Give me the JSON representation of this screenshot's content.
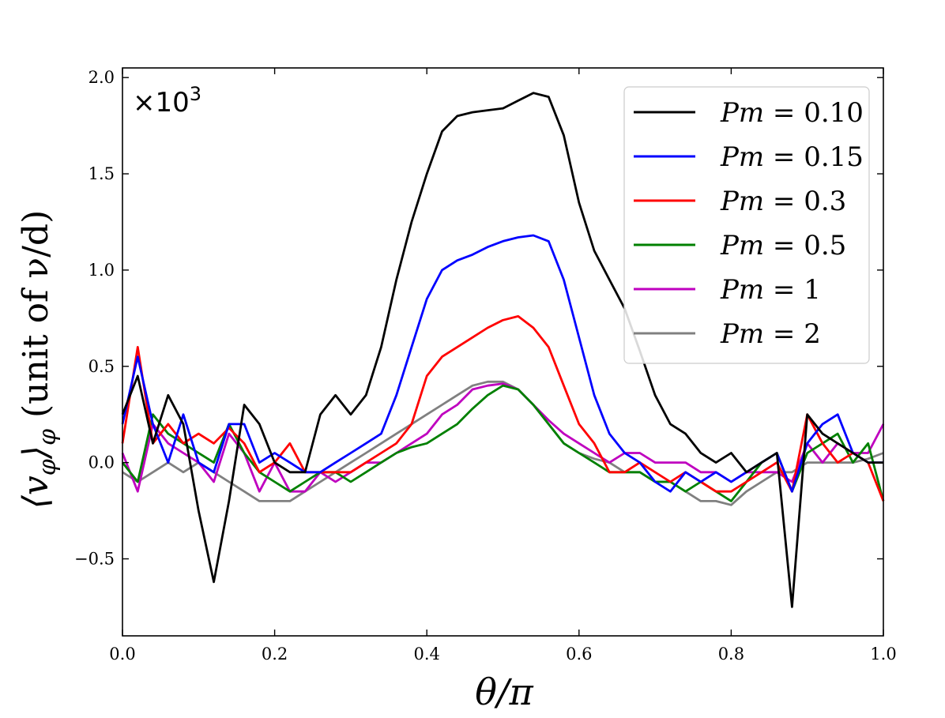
{
  "chart_data": {
    "type": "line",
    "xlabel": "θ/π",
    "ylabel": "⟨v",
    "ylabel_sub": "φ",
    "ylabel_rest": "⟩",
    "ylabel_sub2": "φ",
    "ylabel_unit": " (unit of ν/d)",
    "xlim": [
      0.0,
      1.0
    ],
    "ylim": [
      -0.9,
      2.05
    ],
    "xticks": [
      "0.0",
      "0.2",
      "0.4",
      "0.6",
      "0.8",
      "1.0"
    ],
    "xtick_values": [
      0.0,
      0.2,
      0.4,
      0.6,
      0.8,
      1.0
    ],
    "yticks": [
      "−0.5",
      "0.0",
      "0.5",
      "1.0",
      "1.5",
      "2.0"
    ],
    "ytick_values": [
      -0.5,
      0.0,
      0.5,
      1.0,
      1.5,
      2.0
    ],
    "multiplier_base": "×10",
    "multiplier_exp": "3",
    "legend_position": "top-right",
    "x": [
      0.0,
      0.02,
      0.04,
      0.06,
      0.08,
      0.1,
      0.12,
      0.14,
      0.16,
      0.18,
      0.2,
      0.22,
      0.24,
      0.26,
      0.28,
      0.3,
      0.32,
      0.34,
      0.36,
      0.38,
      0.4,
      0.42,
      0.44,
      0.46,
      0.48,
      0.5,
      0.52,
      0.54,
      0.56,
      0.58,
      0.6,
      0.62,
      0.64,
      0.66,
      0.68,
      0.7,
      0.72,
      0.74,
      0.76,
      0.78,
      0.8,
      0.82,
      0.84,
      0.86,
      0.88,
      0.9,
      0.92,
      0.94,
      0.96,
      0.98,
      1.0
    ],
    "series": [
      {
        "name": "Pm = 0.10",
        "label_a": "Pm",
        "label_b": " = 0.10",
        "color": "#000000",
        "values": [
          0.25,
          0.45,
          0.1,
          0.35,
          0.2,
          -0.25,
          -0.62,
          -0.2,
          0.3,
          0.2,
          0.0,
          -0.05,
          -0.05,
          0.25,
          0.35,
          0.25,
          0.35,
          0.6,
          0.95,
          1.25,
          1.5,
          1.72,
          1.8,
          1.82,
          1.83,
          1.84,
          1.88,
          1.92,
          1.9,
          1.7,
          1.35,
          1.1,
          0.95,
          0.8,
          0.58,
          0.35,
          0.2,
          0.15,
          0.05,
          0.0,
          0.05,
          -0.05,
          0.0,
          0.05,
          -0.75,
          0.25,
          0.15,
          0.1,
          0.05,
          0.0,
          0.0
        ]
      },
      {
        "name": "Pm = 0.15",
        "label_a": "Pm",
        "label_b": " = 0.15",
        "color": "#0000ff",
        "values": [
          0.2,
          0.55,
          0.2,
          0.0,
          0.25,
          0.0,
          -0.05,
          0.2,
          0.2,
          0.0,
          0.05,
          0.0,
          -0.05,
          -0.05,
          0.0,
          0.05,
          0.1,
          0.15,
          0.35,
          0.6,
          0.85,
          1.0,
          1.05,
          1.08,
          1.12,
          1.15,
          1.17,
          1.18,
          1.15,
          0.95,
          0.65,
          0.35,
          0.15,
          0.05,
          0.0,
          -0.1,
          -0.15,
          -0.05,
          -0.1,
          -0.05,
          -0.1,
          -0.05,
          0.0,
          0.05,
          -0.15,
          0.1,
          0.2,
          0.25,
          0.05,
          0.0,
          0.0
        ]
      },
      {
        "name": "Pm = 0.3",
        "label_a": "Pm",
        "label_b": " = 0.3",
        "color": "#ff0000",
        "values": [
          0.1,
          0.6,
          0.1,
          0.2,
          0.1,
          0.15,
          0.1,
          0.18,
          0.1,
          -0.05,
          0.0,
          0.1,
          -0.05,
          -0.05,
          -0.05,
          -0.05,
          0.0,
          0.05,
          0.1,
          0.2,
          0.45,
          0.55,
          0.6,
          0.65,
          0.7,
          0.74,
          0.76,
          0.7,
          0.6,
          0.4,
          0.2,
          0.1,
          -0.05,
          -0.05,
          0.0,
          -0.05,
          -0.1,
          -0.05,
          -0.1,
          -0.15,
          -0.15,
          -0.1,
          -0.05,
          0.0,
          -0.15,
          0.25,
          0.1,
          0.0,
          0.05,
          0.0,
          -0.2
        ]
      },
      {
        "name": "Pm = 0.5",
        "label_a": "Pm",
        "label_b": " = 0.5",
        "color": "#008000",
        "values": [
          0.0,
          -0.1,
          0.25,
          0.15,
          0.1,
          0.05,
          0.0,
          0.2,
          0.05,
          -0.05,
          -0.1,
          -0.15,
          -0.1,
          -0.05,
          -0.05,
          -0.1,
          -0.05,
          0.0,
          0.05,
          0.08,
          0.1,
          0.15,
          0.2,
          0.28,
          0.35,
          0.4,
          0.38,
          0.3,
          0.2,
          0.1,
          0.05,
          0.0,
          -0.05,
          -0.05,
          -0.05,
          -0.1,
          -0.1,
          -0.15,
          -0.1,
          -0.15,
          -0.2,
          -0.1,
          0.0,
          0.05,
          -0.15,
          0.05,
          0.1,
          0.15,
          0.0,
          0.1,
          -0.2
        ]
      },
      {
        "name": "Pm = 1",
        "label_a": "Pm",
        "label_b": " = 1",
        "color": "#bf00bf",
        "values": [
          0.05,
          -0.15,
          0.2,
          0.1,
          0.05,
          0.0,
          -0.1,
          0.15,
          0.05,
          -0.15,
          0.0,
          -0.15,
          -0.15,
          -0.05,
          -0.1,
          -0.05,
          0.0,
          0.0,
          0.05,
          0.1,
          0.15,
          0.25,
          0.3,
          0.38,
          0.4,
          0.41,
          0.38,
          0.3,
          0.22,
          0.15,
          0.1,
          0.05,
          0.0,
          0.05,
          0.05,
          0.0,
          0.0,
          0.0,
          -0.05,
          -0.05,
          -0.1,
          -0.05,
          -0.05,
          -0.05,
          -0.1,
          0.1,
          0.0,
          0.1,
          0.05,
          0.05,
          0.2
        ]
      },
      {
        "name": "Pm = 2",
        "label_a": "Pm",
        "label_b": " = 2",
        "color": "#808080",
        "values": [
          -0.05,
          -0.1,
          -0.05,
          0.0,
          -0.05,
          0.0,
          -0.05,
          -0.1,
          -0.15,
          -0.2,
          -0.2,
          -0.2,
          -0.15,
          -0.1,
          -0.05,
          0.0,
          0.05,
          0.1,
          0.15,
          0.2,
          0.25,
          0.3,
          0.35,
          0.4,
          0.42,
          0.42,
          0.38,
          0.3,
          0.2,
          0.1,
          0.05,
          0.02,
          0.0,
          -0.05,
          -0.05,
          -0.1,
          -0.1,
          -0.15,
          -0.2,
          -0.2,
          -0.22,
          -0.15,
          -0.1,
          -0.05,
          -0.05,
          0.0,
          0.0,
          0.0,
          0.0,
          0.02,
          0.05
        ]
      }
    ]
  }
}
